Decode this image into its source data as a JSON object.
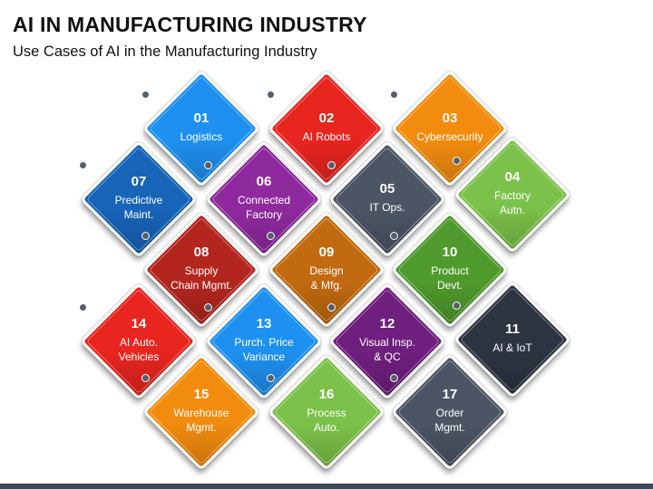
{
  "title": "AI IN MANUFACTURING INDUSTRY",
  "subtitle": "Use Cases of AI in the Manufacturing Industry",
  "items": [
    {
      "num": "01",
      "label": "Logistics",
      "color": "#1e90f0"
    },
    {
      "num": "02",
      "label": "AI Robots",
      "color": "#e8251f"
    },
    {
      "num": "03",
      "label": "Cybersecurity",
      "color": "#f28c0f"
    },
    {
      "num": "04",
      "label": "Factory Autn.",
      "color": "#7cc24a"
    },
    {
      "num": "05",
      "label": "IT Ops.",
      "color": "#4b5563"
    },
    {
      "num": "06",
      "label": "Connected Factory",
      "color": "#8e2a9e"
    },
    {
      "num": "07",
      "label": "Predictive Maint.",
      "color": "#1764b8"
    },
    {
      "num": "08",
      "label": "Supply Chain Mgmt.",
      "color": "#b3261e"
    },
    {
      "num": "09",
      "label": "Design & Mfg.",
      "color": "#c26a10"
    },
    {
      "num": "10",
      "label": "Product Devt.",
      "color": "#4f9a2c"
    },
    {
      "num": "11",
      "label": "AI & IoT",
      "color": "#2c3441"
    },
    {
      "num": "12",
      "label": "Visual Insp. & QC",
      "color": "#6f1f7e"
    },
    {
      "num": "13",
      "label": "Purch. Price Variance",
      "color": "#1e90f0"
    },
    {
      "num": "14",
      "label": "AI Auto. Vehicles",
      "color": "#e8251f"
    },
    {
      "num": "15",
      "label": "Warehouse Mgmt.",
      "color": "#f28c0f"
    },
    {
      "num": "16",
      "label": "Process Auto.",
      "color": "#7cc24a"
    },
    {
      "num": "17",
      "label": "Order Mgmt.",
      "color": "#4b5563"
    }
  ]
}
